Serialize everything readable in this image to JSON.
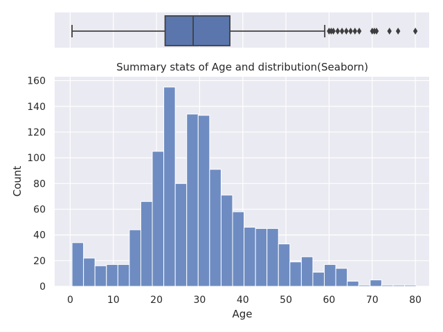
{
  "chart_data": [
    {
      "type": "box",
      "stats": {
        "min": 0.42,
        "q1": 22,
        "median": 28.5,
        "q3": 37,
        "whisker_high": 59
      },
      "outliers": [
        60,
        60.5,
        61,
        62,
        63,
        64,
        65,
        66,
        67,
        70,
        70.5,
        71,
        74,
        76,
        80
      ],
      "xlim": [
        -3.6,
        83.2
      ],
      "grid": true,
      "colors": {
        "box": "#5a76ad",
        "line": "#404040",
        "background": "#eaeaf2"
      }
    },
    {
      "type": "histogram",
      "title": "Summary stats of Age and distribution(Seaborn)",
      "xlabel": "Age",
      "ylabel": "Count",
      "bin_start": 0.42,
      "bin_width": 2.658,
      "values": [
        34,
        22,
        16,
        17,
        17,
        44,
        66,
        105,
        155,
        80,
        134,
        133,
        91,
        71,
        58,
        46,
        45,
        45,
        33,
        19,
        23,
        11,
        17,
        14,
        4,
        1,
        5,
        1,
        1,
        1
      ],
      "xticks": [
        0,
        10,
        20,
        30,
        40,
        50,
        60,
        70,
        80
      ],
      "yticks": [
        0,
        20,
        40,
        60,
        80,
        100,
        120,
        140,
        160
      ],
      "xlim": [
        -3.6,
        83.2
      ],
      "ylim": [
        0,
        163
      ],
      "grid": true,
      "colors": {
        "bar": "#6e8cc1",
        "edge": "#ffffff",
        "background": "#eaeaf2"
      }
    }
  ]
}
